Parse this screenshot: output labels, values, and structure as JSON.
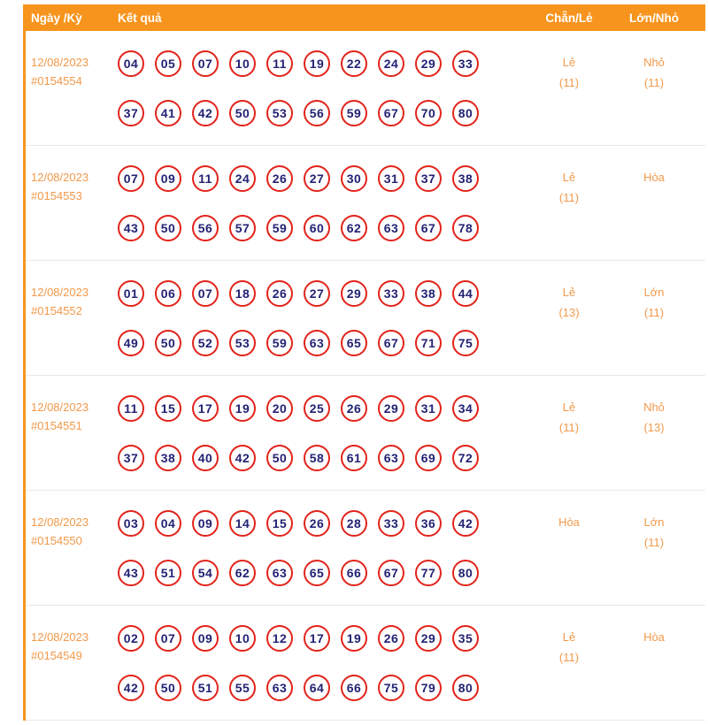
{
  "header": {
    "col_date": "Ngày /Kỳ",
    "col_result": "Kết quả",
    "col_even_odd": "Chẵn/Lẻ",
    "col_big_small": "Lớn/Nhỏ"
  },
  "colors": {
    "header_bg": "#f7941e",
    "accent_text": "#f2994a",
    "ball_border": "#e2231a",
    "ball_number": "#232274"
  },
  "rows": [
    {
      "date": "12/08/2023",
      "draw": "#0154554",
      "line1": [
        "04",
        "05",
        "07",
        "10",
        "11",
        "19",
        "22",
        "24",
        "29",
        "33"
      ],
      "line2": [
        "37",
        "41",
        "42",
        "50",
        "53",
        "56",
        "59",
        "67",
        "70",
        "80"
      ],
      "even_odd": {
        "value": "Lẻ",
        "count": "(11)"
      },
      "big_small": {
        "value": "Nhỏ",
        "count": "(11)"
      }
    },
    {
      "date": "12/08/2023",
      "draw": "#0154553",
      "line1": [
        "07",
        "09",
        "11",
        "24",
        "26",
        "27",
        "30",
        "31",
        "37",
        "38"
      ],
      "line2": [
        "43",
        "50",
        "56",
        "57",
        "59",
        "60",
        "62",
        "63",
        "67",
        "78"
      ],
      "even_odd": {
        "value": "Lẻ",
        "count": "(11)"
      },
      "big_small": {
        "value": "Hòa",
        "count": ""
      }
    },
    {
      "date": "12/08/2023",
      "draw": "#0154552",
      "line1": [
        "01",
        "06",
        "07",
        "18",
        "26",
        "27",
        "29",
        "33",
        "38",
        "44"
      ],
      "line2": [
        "49",
        "50",
        "52",
        "53",
        "59",
        "63",
        "65",
        "67",
        "71",
        "75"
      ],
      "even_odd": {
        "value": "Lẻ",
        "count": "(13)"
      },
      "big_small": {
        "value": "Lớn",
        "count": "(11)"
      }
    },
    {
      "date": "12/08/2023",
      "draw": "#0154551",
      "line1": [
        "11",
        "15",
        "17",
        "19",
        "20",
        "25",
        "26",
        "29",
        "31",
        "34"
      ],
      "line2": [
        "37",
        "38",
        "40",
        "42",
        "50",
        "58",
        "61",
        "63",
        "69",
        "72"
      ],
      "even_odd": {
        "value": "Lẻ",
        "count": "(11)"
      },
      "big_small": {
        "value": "Nhỏ",
        "count": "(13)"
      }
    },
    {
      "date": "12/08/2023",
      "draw": "#0154550",
      "line1": [
        "03",
        "04",
        "09",
        "14",
        "15",
        "26",
        "28",
        "33",
        "36",
        "42"
      ],
      "line2": [
        "43",
        "51",
        "54",
        "62",
        "63",
        "65",
        "66",
        "67",
        "77",
        "80"
      ],
      "even_odd": {
        "value": "Hòa",
        "count": ""
      },
      "big_small": {
        "value": "Lớn",
        "count": "(11)"
      }
    },
    {
      "date": "12/08/2023",
      "draw": "#0154549",
      "line1": [
        "02",
        "07",
        "09",
        "10",
        "12",
        "17",
        "19",
        "26",
        "29",
        "35"
      ],
      "line2": [
        "42",
        "50",
        "51",
        "55",
        "63",
        "64",
        "66",
        "75",
        "79",
        "80"
      ],
      "even_odd": {
        "value": "Lẻ",
        "count": "(11)"
      },
      "big_small": {
        "value": "Hòa",
        "count": ""
      }
    }
  ]
}
